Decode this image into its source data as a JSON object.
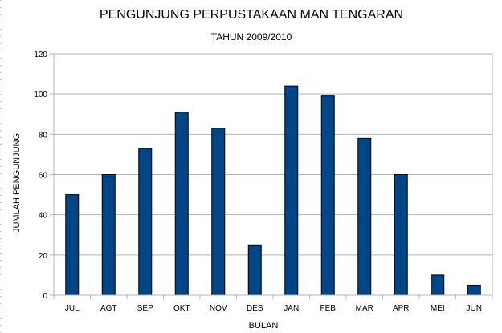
{
  "chart_data": {
    "type": "bar",
    "title": "PENGUNJUNG PERPUSTAKAAN MAN TENGARAN",
    "subtitle": "TAHUN 2009/2010",
    "xlabel": "BULAN",
    "ylabel": "JUMLAH PENGUNJUNG",
    "categories": [
      "JUL",
      "AGT",
      "SEP",
      "OKT",
      "NOV",
      "DES",
      "JAN",
      "FEB",
      "MAR",
      "APR",
      "MEI",
      "JUN"
    ],
    "values": [
      50,
      60,
      73,
      91,
      83,
      25,
      104,
      99,
      78,
      60,
      10,
      5
    ],
    "ylim": [
      0,
      120
    ],
    "yticks": [
      0,
      20,
      40,
      60,
      80,
      100,
      120
    ],
    "grid": true,
    "legend": "none",
    "bar_color": "#004586",
    "grid_color": "#b3b3b3"
  }
}
